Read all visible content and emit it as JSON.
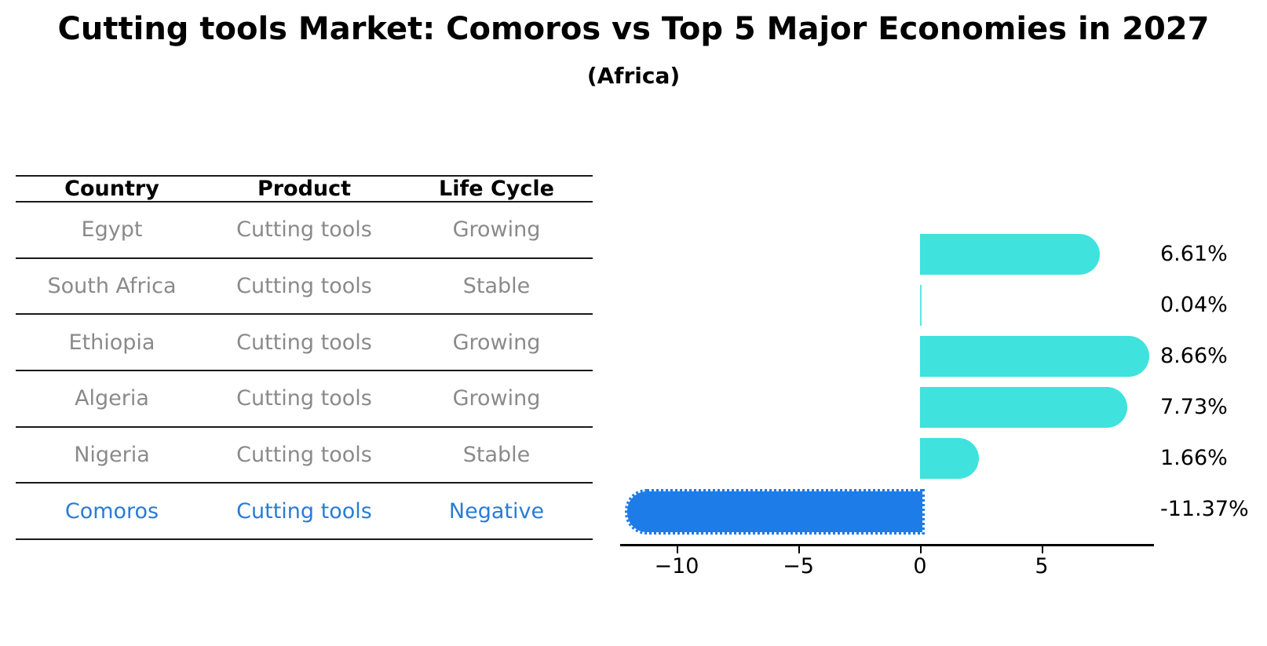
{
  "title": "Cutting tools Market: Comoros vs Top 5 Major Economies in 2027",
  "subtitle": "(Africa)",
  "table": {
    "headers": [
      "Country",
      "Product",
      "Life Cycle"
    ],
    "rows": [
      {
        "country": "Egypt",
        "product": "Cutting tools",
        "life_cycle": "Growing",
        "highlight": false
      },
      {
        "country": "South Africa",
        "product": "Cutting tools",
        "life_cycle": "Stable",
        "highlight": false
      },
      {
        "country": "Ethiopia",
        "product": "Cutting tools",
        "life_cycle": "Growing",
        "highlight": false
      },
      {
        "country": "Algeria",
        "product": "Cutting tools",
        "life_cycle": "Growing",
        "highlight": false
      },
      {
        "country": "Nigeria",
        "product": "Cutting tools",
        "life_cycle": "Stable",
        "highlight": false
      },
      {
        "country": "Comoros",
        "product": "Cutting tools",
        "life_cycle": "Negative",
        "highlight": true
      }
    ]
  },
  "chart_data": {
    "type": "bar",
    "orientation": "horizontal",
    "title": "Cutting tools Market: Comoros vs Top 5 Major Economies in 2027 (Africa)",
    "categories": [
      "Egypt",
      "South Africa",
      "Ethiopia",
      "Algeria",
      "Nigeria",
      "Comoros"
    ],
    "values": [
      6.61,
      0.04,
      8.66,
      7.73,
      1.66,
      -11.37
    ],
    "value_labels": [
      "6.61%",
      "0.04%",
      "8.66%",
      "7.73%",
      "1.66%",
      "-11.37%"
    ],
    "xlabel": "",
    "ylabel": "",
    "xlim": [
      -12.3,
      9.6
    ],
    "xticks": [
      -10,
      -5,
      0,
      5
    ],
    "xtick_labels": [
      "−10",
      "−5",
      "0",
      "5"
    ],
    "grid": false,
    "legend": false,
    "highlighted_category": "Comoros",
    "highlight_style": "dotted-edge"
  },
  "colors": {
    "bar_positive": "#3fe2dc",
    "bar_negative": "#1e7ce8",
    "highlight_text": "#2b7bd4",
    "table_text": "#8a8a8a",
    "heading_text": "#000000",
    "table_line": "#1a1a1a",
    "axis": "#000000",
    "background": "#ffffff"
  }
}
